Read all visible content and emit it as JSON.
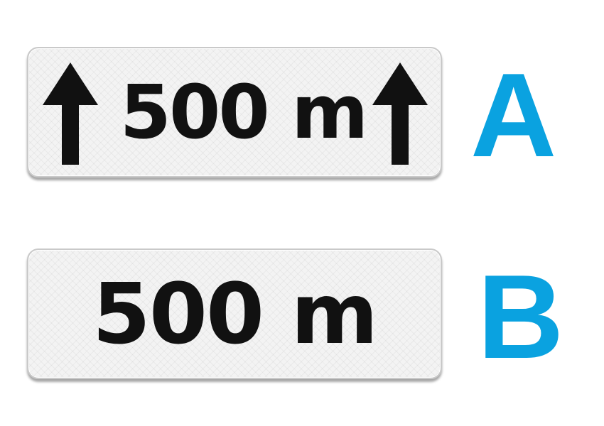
{
  "options": [
    {
      "letter": "A",
      "sign_text": "500 m",
      "arrow_icons": [
        "arrow-up-icon",
        "arrow-up-icon"
      ]
    },
    {
      "letter": "B",
      "sign_text": "500 m"
    }
  ],
  "colors": {
    "letter": "#0aa2e0",
    "sign_background": "#f3f3f3",
    "sign_text": "#111111"
  }
}
